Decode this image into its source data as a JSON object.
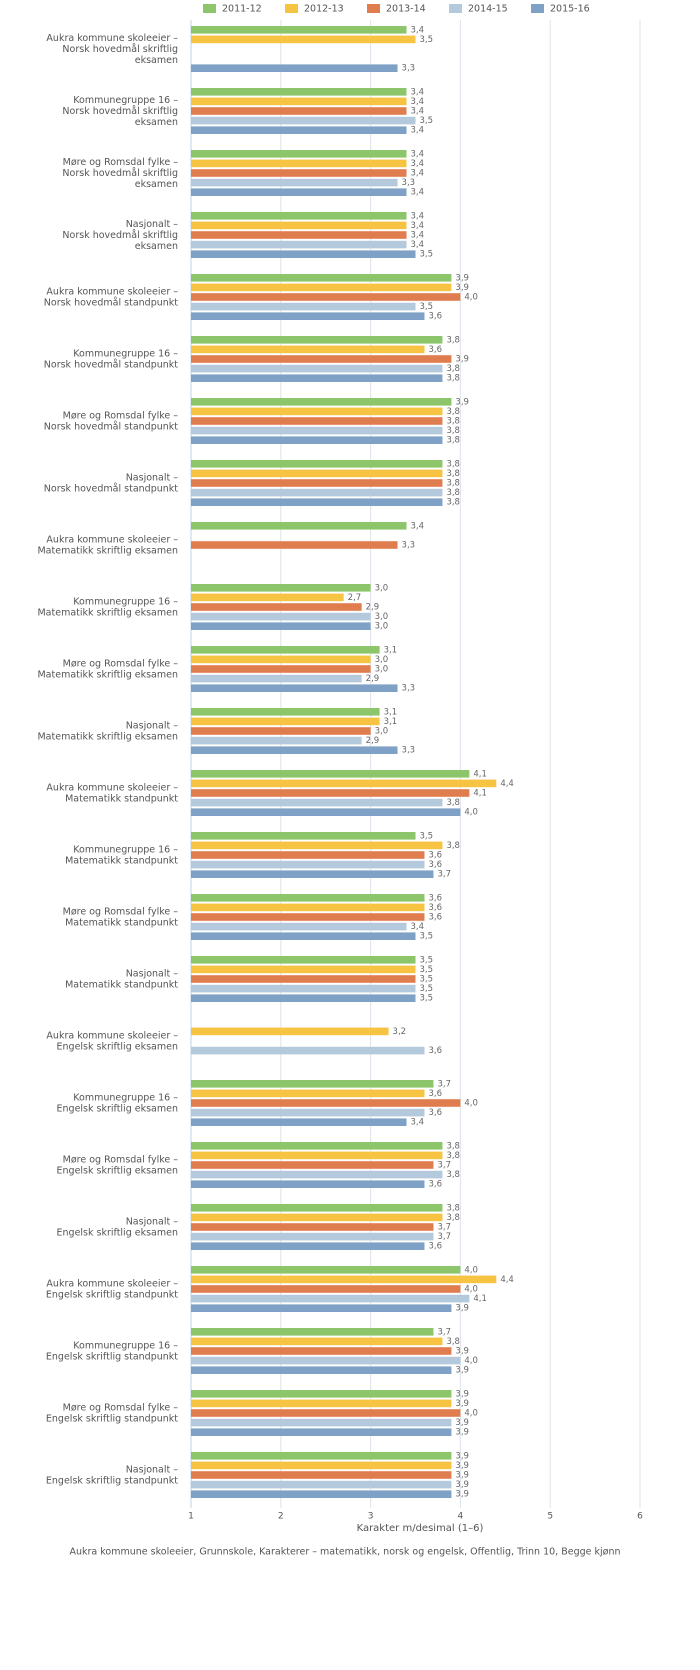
{
  "chart_data": {
    "type": "bar",
    "orientation": "horizontal",
    "categories": [
      "Aukra kommune skoleeier –\nNorsk hovedmål skriftlig\neksamen",
      "Kommunegruppe 16 –\nNorsk hovedmål skriftlig\neksamen",
      "Møre og Romsdal fylke –\nNorsk hovedmål skriftlig\neksamen",
      "Nasjonalt –\nNorsk hovedmål skriftlig\neksamen",
      "Aukra kommune skoleeier –\nNorsk hovedmål standpunkt",
      "Kommunegruppe 16 –\nNorsk hovedmål standpunkt",
      "Møre og Romsdal fylke –\nNorsk hovedmål standpunkt",
      "Nasjonalt –\nNorsk hovedmål standpunkt",
      "Aukra kommune skoleeier –\nMatematikk skriftlig eksamen",
      "Kommunegruppe 16 –\nMatematikk skriftlig eksamen",
      "Møre og Romsdal fylke –\nMatematikk skriftlig eksamen",
      "Nasjonalt –\nMatematikk skriftlig eksamen",
      "Aukra kommune skoleeier –\nMatematikk standpunkt",
      "Kommunegruppe 16 –\nMatematikk standpunkt",
      "Møre og Romsdal fylke –\nMatematikk standpunkt",
      "Nasjonalt –\nMatematikk standpunkt",
      "Aukra kommune skoleeier –\nEngelsk skriftlig eksamen",
      "Kommunegruppe 16 –\nEngelsk skriftlig eksamen",
      "Møre og Romsdal fylke –\nEngelsk skriftlig eksamen",
      "Nasjonalt –\nEngelsk skriftlig eksamen",
      "Aukra kommune skoleeier –\nEngelsk skriftlig standpunkt",
      "Kommunegruppe 16 –\nEngelsk skriftlig standpunkt",
      "Møre og Romsdal fylke –\nEngelsk skriftlig standpunkt",
      "Nasjonalt –\nEngelsk skriftlig standpunkt"
    ],
    "series": [
      {
        "name": "2011-12",
        "color": "#8dc66a",
        "values": [
          3.4,
          3.4,
          3.4,
          3.4,
          3.9,
          3.8,
          3.9,
          3.8,
          3.4,
          3.0,
          3.1,
          3.1,
          4.1,
          3.5,
          3.6,
          3.5,
          null,
          3.7,
          3.8,
          3.8,
          4.0,
          3.7,
          3.9,
          3.9
        ],
        "value_labels": [
          "3,4",
          "3,4",
          "3,4",
          "3,4",
          "3,9",
          "3,8",
          "3,9",
          "3,8",
          "3,4",
          "3,0",
          "3,1",
          "3,1",
          "4,1",
          "3,5",
          "3,6",
          "3,5",
          null,
          "3,7",
          "3,8",
          "3,8",
          "4,0",
          "3,7",
          "3,9",
          "3,9"
        ]
      },
      {
        "name": "2012-13",
        "color": "#f6c343",
        "values": [
          3.5,
          3.4,
          3.4,
          3.4,
          3.9,
          3.6,
          3.8,
          3.8,
          null,
          2.7,
          3.0,
          3.1,
          4.4,
          3.8,
          3.6,
          3.5,
          3.2,
          3.6,
          3.8,
          3.8,
          4.4,
          3.8,
          3.9,
          3.9
        ],
        "value_labels": [
          "3,5",
          "3,4",
          "3,4",
          "3,4",
          "3,9",
          "3,6",
          "3,8",
          "3,8",
          null,
          "2,7",
          "3,0",
          "3,1",
          "4,4",
          "3,8",
          "3,6",
          "3,5",
          "3,2",
          "3,6",
          "3,8",
          "3,8",
          "4,4",
          "3,8",
          "3,9",
          "3,9"
        ]
      },
      {
        "name": "2013-14",
        "color": "#e07d4e",
        "values": [
          null,
          3.4,
          3.4,
          3.4,
          4.0,
          3.9,
          3.8,
          3.8,
          3.3,
          2.9,
          3.0,
          3.0,
          4.1,
          3.6,
          3.6,
          3.5,
          null,
          4.0,
          3.7,
          3.7,
          4.0,
          3.9,
          4.0,
          3.9
        ],
        "value_labels": [
          null,
          "3,4",
          "3,4",
          "3,4",
          "4,0",
          "3,9",
          "3,8",
          "3,8",
          "3,3",
          "2,9",
          "3,0",
          "3,0",
          "4,1",
          "3,6",
          "3,6",
          "3,5",
          null,
          "4,0",
          "3,7",
          "3,7",
          "4,0",
          "3,9",
          "4,0",
          "3,9"
        ]
      },
      {
        "name": "2014-15",
        "color": "#b5c9dd",
        "values": [
          null,
          3.5,
          3.3,
          3.4,
          3.5,
          3.8,
          3.8,
          3.8,
          null,
          3.0,
          2.9,
          2.9,
          3.8,
          3.6,
          3.4,
          3.5,
          3.6,
          3.6,
          3.8,
          3.7,
          4.1,
          4.0,
          3.9,
          3.9
        ],
        "value_labels": [
          null,
          "3,5",
          "3,3",
          "3,4",
          "3,5",
          "3,8",
          "3,8",
          "3,8",
          null,
          "3,0",
          "2,9",
          "2,9",
          "3,8",
          "3,6",
          "3,4",
          "3,5",
          "3,6",
          "3,6",
          "3,8",
          "3,7",
          "4,1",
          "4,0",
          "3,9",
          "3,9"
        ]
      },
      {
        "name": "2015-16",
        "color": "#7fa1c5",
        "values": [
          3.3,
          3.4,
          3.4,
          3.5,
          3.6,
          3.8,
          3.8,
          3.8,
          null,
          3.0,
          3.3,
          3.3,
          4.0,
          3.7,
          3.5,
          3.5,
          null,
          3.4,
          3.6,
          3.6,
          3.9,
          3.9,
          3.9,
          3.9
        ],
        "value_labels": [
          "3,3",
          "3,4",
          "3,4",
          "3,5",
          "3,6",
          "3,8",
          "3,8",
          "3,8",
          null,
          "3,0",
          "3,3",
          "3,3",
          "4,0",
          "3,7",
          "3,5",
          "3,5",
          null,
          "3,4",
          "3,6",
          "3,6",
          "3,9",
          "3,9",
          "3,9",
          "3,9"
        ]
      }
    ],
    "xlim": [
      1,
      6
    ],
    "xticks": [
      1,
      2,
      3,
      4,
      5,
      6
    ],
    "grid": true,
    "xlabel": "Karakter m/desimal (1–6)",
    "footnote": "Aukra kommune skoleeier, Grunnskole, Karakterer – matematikk, norsk og engelsk, Offentlig, Trinn 10, Begge kjønn",
    "legend": "top"
  }
}
